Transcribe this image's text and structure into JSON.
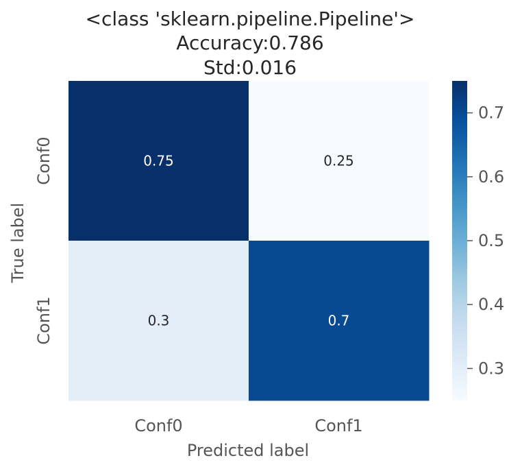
{
  "chart_data": {
    "type": "heatmap",
    "title_lines": [
      "<class 'sklearn.pipeline.Pipeline'>",
      "Accuracy:0.786",
      "Std:0.016"
    ],
    "xlabel": "Predicted label",
    "ylabel": "True label",
    "x_categories": [
      "Conf0",
      "Conf1"
    ],
    "y_categories": [
      "Conf0",
      "Conf1"
    ],
    "values": [
      [
        0.75,
        0.25
      ],
      [
        0.3,
        0.7
      ]
    ],
    "cell_labels": [
      [
        "0.75",
        "0.25"
      ],
      [
        "0.3",
        "0.7"
      ]
    ],
    "colormap": "Blues",
    "colorbar": {
      "range": [
        0.25,
        0.75
      ],
      "ticks": [
        0.3,
        0.4,
        0.5,
        0.6,
        0.7
      ],
      "tick_labels": [
        "0.3",
        "0.4",
        "0.5",
        "0.6",
        "0.7"
      ]
    },
    "colors": {
      "low": "#f7fbff",
      "high": "#08306b",
      "text_dark": "#262626",
      "text_light": "#ffffff",
      "tick_text": "#555555"
    }
  }
}
